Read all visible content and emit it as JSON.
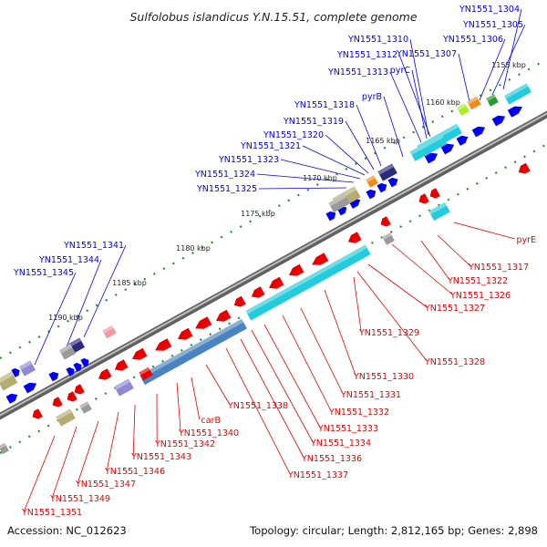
{
  "title": "Sulfolobus islandicus Y.N.15.51, complete genome",
  "accession": "Accession: NC_012623",
  "summary": "Topology: circular; Length: 2,812,165 bp; Genes: 2,898",
  "colors": {
    "forward": "#0000ee",
    "reverse": "#e80000",
    "backbone": "#8a8a8a",
    "tick": "#2f8a2f",
    "cyan": "#22ccdd",
    "steel": "#4a84c0",
    "gray": "#9a9a9a",
    "olive": "#b4ac70",
    "lavender": "#8e88d6",
    "navy": "#2a2a7a",
    "orange": "#f08a1a",
    "lime": "#aaee22",
    "green": "#2a9a2a",
    "pink": "#f09aa0"
  },
  "scale_labels": [
    "1155 kbp",
    "1160 kbp",
    "1165 kbp",
    "1170 kbp",
    "1175 kbp",
    "1180 kbp",
    "1185 kbp",
    "1190 kbp"
  ],
  "forward_genes": [
    "YN1551_1304",
    "YN1551_1305",
    "YN1551_1306",
    "YN1551_1307",
    "YN1551_1310",
    "YN1551_1312",
    "pyrC",
    "YN1551_1313",
    "pyrB",
    "YN1551_1318",
    "YN1551_1319",
    "YN1551_1320",
    "YN1551_1321",
    "YN1551_1323",
    "YN1551_1324",
    "YN1551_1325",
    "YN1551_1341",
    "YN1551_1344",
    "YN1551_1345"
  ],
  "reverse_genes": [
    "pyrE",
    "YN1551_1317",
    "YN1551_1322",
    "YN1551_1326",
    "YN1551_1327",
    "YN1551_1328",
    "YN1551_1329",
    "YN1551_1330",
    "YN1551_1331",
    "YN1551_1332",
    "YN1551_1333",
    "YN1551_1334",
    "YN1551_1336",
    "YN1551_1337",
    "YN1551_1338",
    "carB",
    "YN1551_1340",
    "YN1551_1342",
    "YN1551_1343",
    "YN1551_1346",
    "YN1551_1347",
    "YN1551_1349",
    "YN1551_1351"
  ]
}
